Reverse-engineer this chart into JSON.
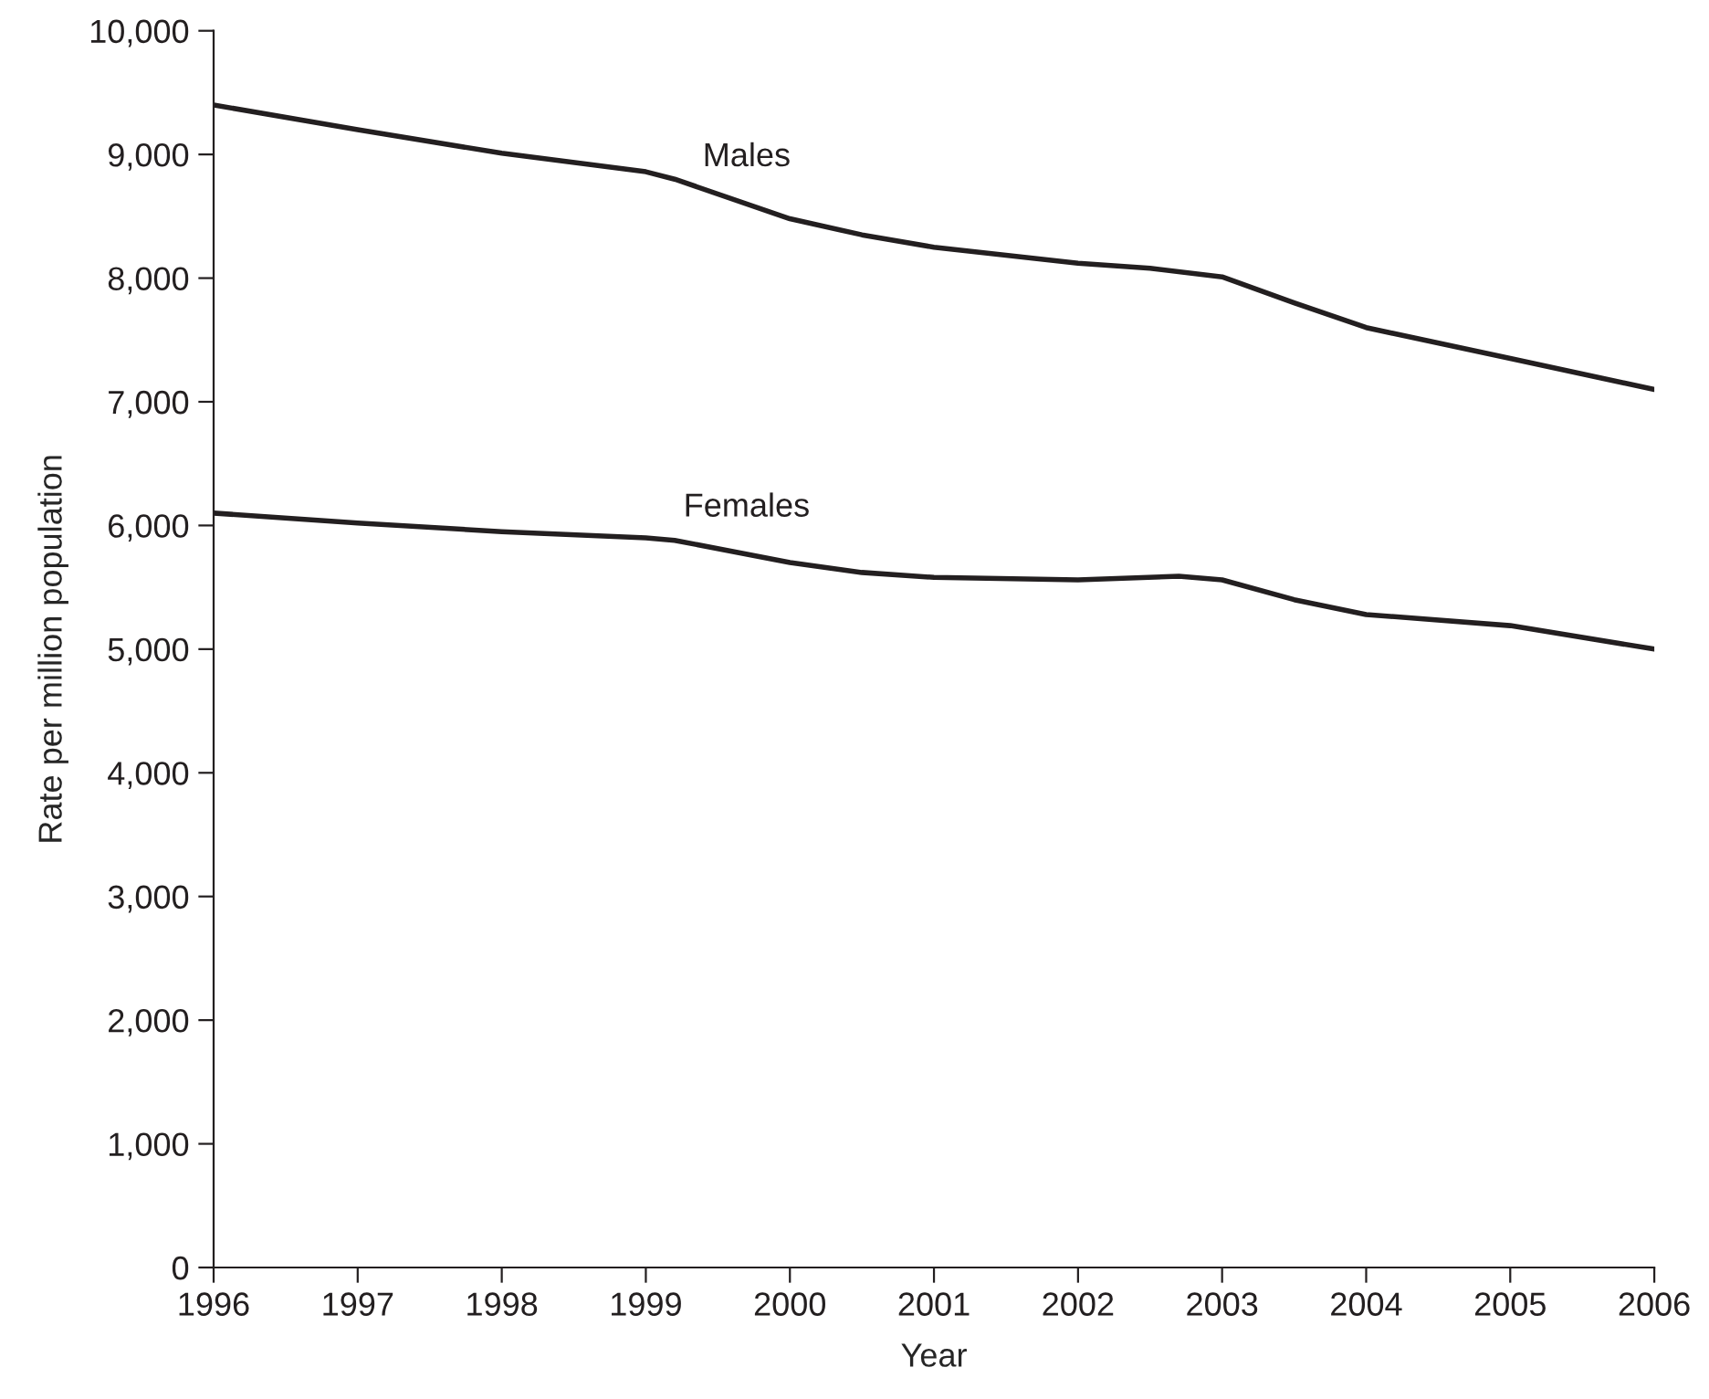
{
  "chart_data": {
    "type": "line",
    "xlabel": "Year",
    "ylabel": "Rate per million population",
    "series": [
      {
        "name": "Males",
        "color": "#231f20",
        "x": [
          1996,
          1997,
          1998,
          1999,
          1999.2,
          2000,
          2000.5,
          2001,
          2002,
          2002.5,
          2003,
          2003.5,
          2004,
          2005,
          2006
        ],
        "values": [
          9400,
          9200,
          9010,
          8860,
          8800,
          8480,
          8350,
          8250,
          8120,
          8080,
          8010,
          7800,
          7600,
          7350,
          7100
        ]
      },
      {
        "name": "Females",
        "color": "#231f20",
        "x": [
          1996,
          1997,
          1998,
          1999,
          1999.2,
          2000,
          2000.5,
          2001,
          2002,
          2002.7,
          2003,
          2003.5,
          2004,
          2005,
          2006
        ],
        "values": [
          6100,
          6020,
          5950,
          5900,
          5880,
          5700,
          5620,
          5580,
          5560,
          5590,
          5560,
          5400,
          5280,
          5190,
          5000
        ]
      }
    ],
    "xlim": [
      1996,
      2006
    ],
    "xticks": [
      1996,
      1997,
      1998,
      1999,
      2000,
      2001,
      2002,
      2003,
      2004,
      2005,
      2006
    ],
    "ylim": [
      0,
      10000
    ],
    "yticks": [
      {
        "value": 0,
        "label": "0"
      },
      {
        "value": 1000,
        "label": "1,000"
      },
      {
        "value": 2000,
        "label": "2,000"
      },
      {
        "value": 3000,
        "label": "3,000"
      },
      {
        "value": 4000,
        "label": "4,000"
      },
      {
        "value": 5000,
        "label": "5,000"
      },
      {
        "value": 6000,
        "label": "6,000"
      },
      {
        "value": 7000,
        "label": "7,000"
      },
      {
        "value": 8000,
        "label": "8,000"
      },
      {
        "value": 9000,
        "label": "9,000"
      },
      {
        "value": 10000,
        "label": "10,000"
      }
    ],
    "grid": false,
    "legend": false,
    "line_style": "solid",
    "marker": "none"
  }
}
